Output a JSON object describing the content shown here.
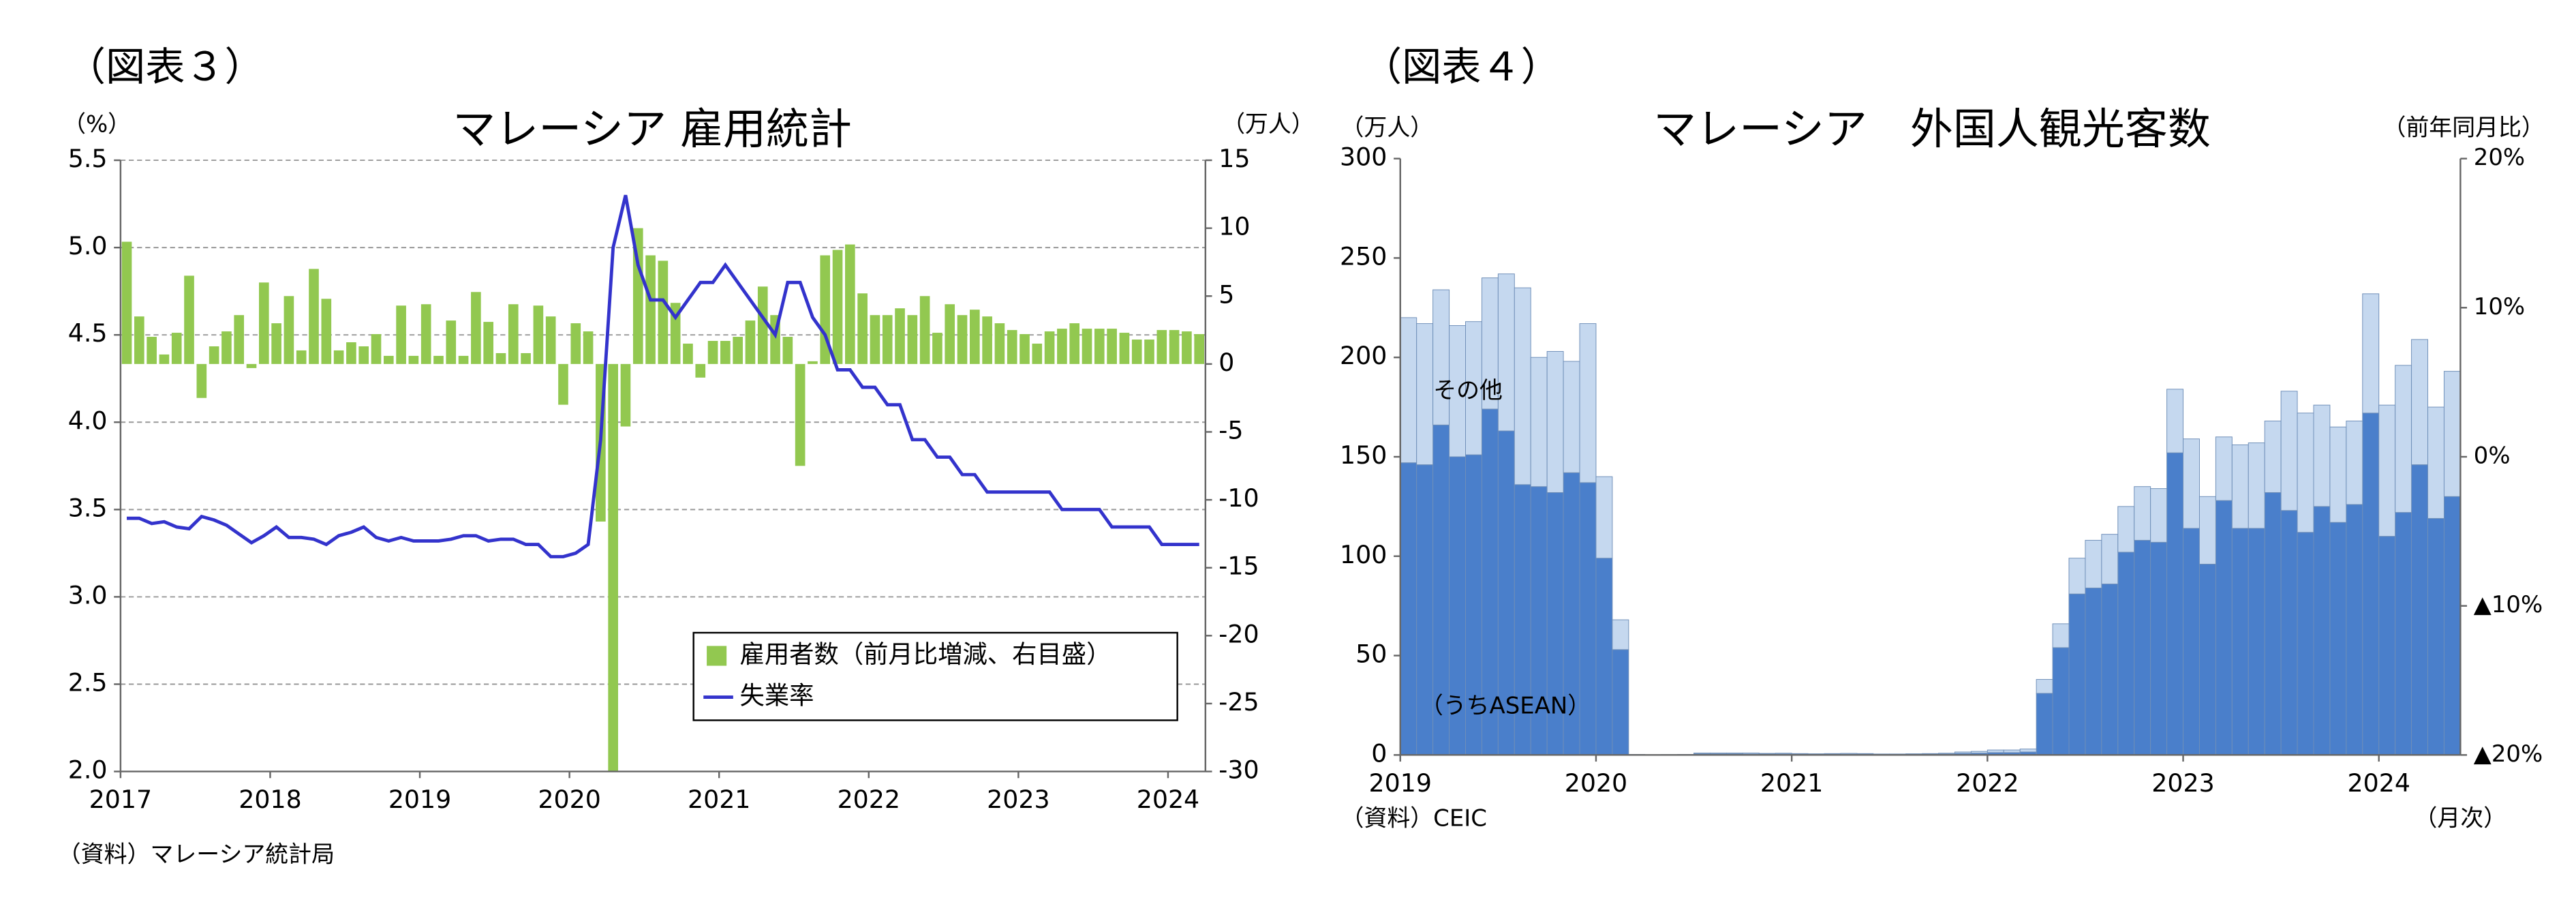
{
  "chart_data": [
    {
      "type": "combo",
      "label": "（図表３）",
      "title": "マレーシア 雇用統計",
      "y_label": "（%）",
      "y2_label": "（万人）",
      "source": "（資料）マレーシア統計局",
      "categories": [
        "2017",
        null,
        null,
        null,
        null,
        null,
        null,
        null,
        null,
        null,
        null,
        null,
        "2018",
        null,
        null,
        null,
        null,
        null,
        null,
        null,
        null,
        null,
        null,
        null,
        "2019",
        null,
        null,
        null,
        null,
        null,
        null,
        null,
        null,
        null,
        null,
        null,
        "2020",
        null,
        null,
        null,
        null,
        null,
        null,
        null,
        null,
        null,
        null,
        null,
        "2021",
        null,
        null,
        null,
        null,
        null,
        null,
        null,
        null,
        null,
        null,
        null,
        "2022",
        null,
        null,
        null,
        null,
        null,
        null,
        null,
        null,
        null,
        null,
        null,
        "2023",
        null,
        null,
        null,
        null,
        null,
        null,
        null,
        null,
        null,
        null,
        null,
        "2024",
        null,
        null
      ],
      "ylim": [
        2,
        5.5
      ],
      "yticks": [
        {
          "value": 2,
          "label": "2.0"
        },
        2.5,
        {
          "value": 3,
          "label": "3.0"
        },
        3.5,
        {
          "value": 4,
          "label": "4.0"
        },
        4.5,
        {
          "value": 5,
          "label": "5.0"
        },
        5.5
      ],
      "y2lim": [
        -30,
        15
      ],
      "y2ticks": [
        -30,
        -25,
        -20,
        -15,
        -10,
        -5,
        0,
        5,
        10,
        15
      ],
      "grid": true,
      "legend": "lower right",
      "series": [
        {
          "name": "雇用者数（前月比増減、右目盛）",
          "type": "bar",
          "axis": "y2",
          "color": "#92c850",
          "values": [
            9,
            3.5,
            2,
            0.7,
            2.3,
            6.5,
            -2.5,
            1.3,
            2.4,
            3.6,
            -0.3,
            6,
            3,
            5,
            1,
            7,
            4.8,
            1,
            1.6,
            1.3,
            2.2,
            0.6,
            4.3,
            0.6,
            4.4,
            0.6,
            3.2,
            0.6,
            5.3,
            3.1,
            0.8,
            4.4,
            0.8,
            4.3,
            3.5,
            -3,
            3,
            2.4,
            -11.6,
            -30,
            -4.6,
            10,
            8,
            7.6,
            4.5,
            1.5,
            -1,
            1.7,
            1.7,
            2,
            3.2,
            5.7,
            3.6,
            2,
            -7.5,
            0.2,
            8,
            8.4,
            8.8,
            5.2,
            3.6,
            3.6,
            4.1,
            3.6,
            5,
            2.3,
            4.4,
            3.6,
            4,
            3.5,
            3,
            2.5,
            2.2,
            1.5,
            2.4,
            2.6,
            3,
            2.6,
            2.6,
            2.6,
            2.3,
            1.8,
            1.8,
            2.5,
            2.5,
            2.4,
            2.2
          ]
        },
        {
          "name": "失業率",
          "type": "line",
          "color": "#3333cc",
          "values": [
            3.45,
            3.45,
            3.42,
            3.43,
            3.4,
            3.39,
            3.46,
            3.44,
            3.41,
            3.36,
            3.31,
            3.35,
            3.4,
            3.34,
            3.34,
            3.33,
            3.3,
            3.35,
            3.37,
            3.4,
            3.34,
            3.32,
            3.34,
            3.32,
            3.32,
            3.32,
            3.33,
            3.35,
            3.35,
            3.32,
            3.33,
            3.33,
            3.3,
            3.3,
            3.23,
            3.23,
            3.25,
            3.3,
            3.9,
            5,
            5.3,
            4.9,
            4.7,
            4.7,
            4.6,
            4.7,
            4.8,
            4.8,
            4.9,
            4.8,
            4.7,
            4.6,
            4.5,
            4.8,
            4.8,
            4.6,
            4.5,
            4.3,
            4.3,
            4.2,
            4.2,
            4.1,
            4.1,
            3.9,
            3.9,
            3.8,
            3.8,
            3.7,
            3.7,
            3.6,
            3.6,
            3.6,
            3.6,
            3.6,
            3.6,
            3.5,
            3.5,
            3.5,
            3.5,
            3.4,
            3.4,
            3.4,
            3.4,
            3.3,
            3.3,
            3.3,
            3.3
          ]
        }
      ]
    },
    {
      "type": "stacked_bar",
      "label": "（図表４）",
      "title": "マレーシア　外国人観光客数",
      "y_label": "（万人）",
      "y2_label": "（前年同月比）",
      "source": "（資料）CEIC",
      "x_unit": "（月次）",
      "categories": [
        "2019",
        null,
        null,
        null,
        null,
        null,
        null,
        null,
        null,
        null,
        null,
        null,
        "2020",
        null,
        null,
        null,
        null,
        null,
        null,
        null,
        null,
        null,
        null,
        null,
        "2021",
        null,
        null,
        null,
        null,
        null,
        null,
        null,
        null,
        null,
        null,
        null,
        "2022",
        null,
        null,
        null,
        null,
        null,
        null,
        null,
        null,
        null,
        null,
        null,
        "2023",
        null,
        null,
        null,
        null,
        null,
        null,
        null,
        null,
        null,
        null,
        null,
        "2024",
        null,
        null,
        null,
        null
      ],
      "ylim": [
        0,
        300
      ],
      "yticks": [
        0,
        50,
        100,
        150,
        200,
        250,
        300
      ],
      "y2lim": [
        -20,
        20
      ],
      "y2ticks": [
        {
          "value": -20,
          "label": "▲20%"
        },
        {
          "value": -10,
          "label": "▲10%"
        },
        {
          "value": 0,
          "label": "0%"
        },
        {
          "value": 10,
          "label": "10%"
        },
        {
          "value": 20,
          "label": "20%"
        }
      ],
      "grid": false,
      "series": [
        {
          "name": "（うちASEAN）",
          "color": "#4a7fcb",
          "values": [
            147,
            146,
            166,
            150,
            151,
            174,
            163,
            136,
            135,
            132,
            142,
            137,
            99,
            53,
            0.2,
            0.1,
            0.1,
            0.2,
            0.6,
            0.6,
            0.6,
            0.5,
            0.5,
            0.5,
            0.4,
            0.3,
            0.4,
            0.4,
            0.4,
            0.3,
            0.3,
            0.3,
            0.4,
            0.5,
            0.8,
            0.9,
            1.2,
            1.2,
            1.5,
            31,
            54,
            81,
            84,
            86,
            102,
            108,
            107,
            152,
            114,
            96,
            128,
            114,
            114,
            132,
            123,
            112,
            125,
            117,
            126,
            172,
            110,
            122,
            146,
            119,
            130
          ]
        },
        {
          "name": "その他",
          "color": "#c5d8ef",
          "values": [
            73,
            71,
            68,
            66,
            67,
            66,
            79,
            99,
            65,
            71,
            56,
            80,
            41,
            15,
            0.1,
            0,
            0.1,
            0.1,
            0.4,
            0.4,
            0.4,
            0.5,
            0.3,
            0.4,
            0.3,
            0.3,
            0.3,
            0.4,
            0.3,
            0.2,
            0.2,
            0.3,
            0.3,
            0.4,
            0.7,
            0.9,
            1.3,
            1.3,
            1.5,
            7,
            12,
            18,
            24,
            25,
            23,
            27,
            27,
            32,
            45,
            34,
            32,
            42,
            43,
            36,
            60,
            60,
            51,
            48,
            42,
            60,
            66,
            74,
            63,
            56,
            63
          ]
        }
      ]
    }
  ]
}
